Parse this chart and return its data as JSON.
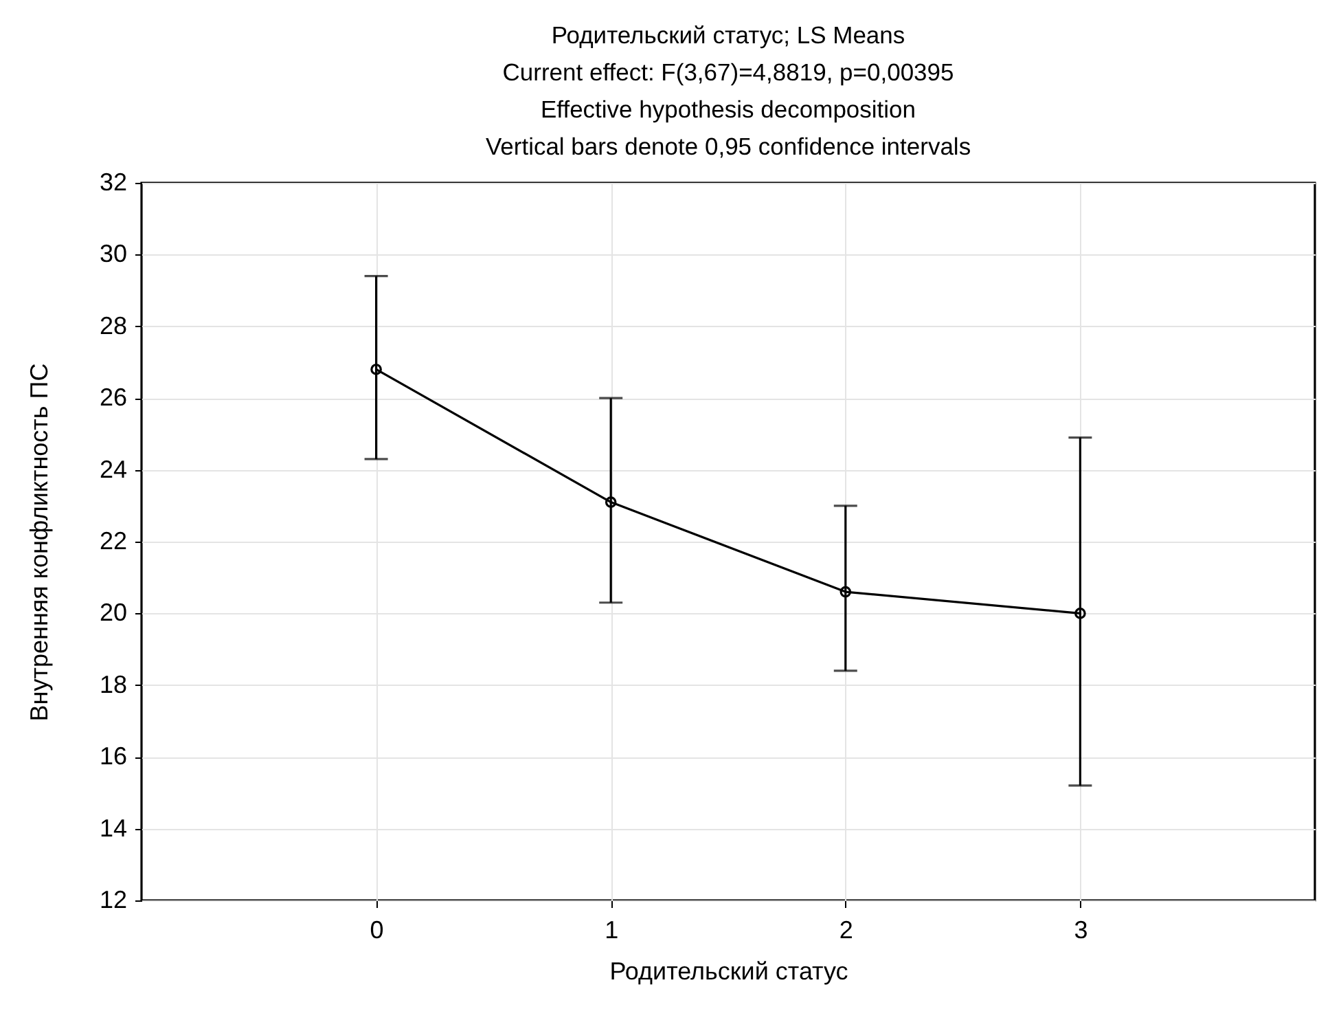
{
  "chart_data": {
    "type": "line",
    "title": "Родительский статус; LS Means",
    "subtitle": [
      "Current effect: F(3,67)=4,8819, p=0,00395",
      "Effective hypothesis decomposition",
      "Vertical bars denote 0,95 confidence intervals"
    ],
    "xlabel": "Родительский статус",
    "ylabel": "Внутренняя конфликтность ПС",
    "x": [
      0,
      1,
      2,
      3
    ],
    "series": [
      {
        "color": "#000000",
        "values": [
          26.8,
          23.1,
          20.6,
          20.0
        ],
        "errors": [
          [
            24.3,
            29.4
          ],
          [
            20.3,
            26.0
          ],
          [
            18.4,
            23.0
          ],
          [
            15.2,
            24.9
          ]
        ]
      }
    ],
    "xlim": [
      -1,
      4
    ],
    "xticks": [
      0,
      1,
      2,
      3
    ],
    "ylim": [
      12,
      32
    ],
    "yticks": [
      12,
      14,
      16,
      18,
      20,
      22,
      24,
      26,
      28,
      30,
      32
    ],
    "grid": true,
    "marker": "circle",
    "line_style": "solid"
  }
}
